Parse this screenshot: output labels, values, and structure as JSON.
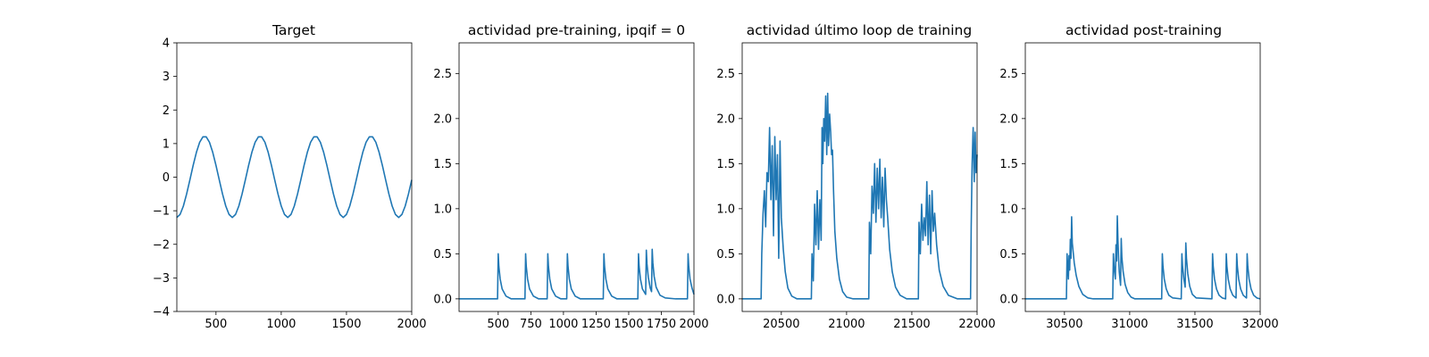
{
  "colors": {
    "series": "#1f77b4"
  },
  "chart_data": [
    {
      "type": "line",
      "title": "Target",
      "xlim": [
        200,
        2000
      ],
      "ylim": [
        -4,
        4
      ],
      "xticks": [
        500,
        1000,
        1500,
        2000
      ],
      "yticks": [
        -4,
        -3,
        -2,
        -1,
        0,
        1,
        2,
        3,
        4
      ],
      "x": [
        200,
        225,
        250,
        275,
        300,
        325,
        350,
        375,
        400,
        425,
        450,
        475,
        500,
        525,
        550,
        575,
        600,
        625,
        650,
        675,
        700,
        725,
        750,
        775,
        800,
        825,
        850,
        875,
        900,
        925,
        950,
        975,
        1000,
        1025,
        1050,
        1075,
        1100,
        1125,
        1150,
        1175,
        1200,
        1225,
        1250,
        1275,
        1300,
        1325,
        1350,
        1375,
        1400,
        1425,
        1450,
        1475,
        1500,
        1525,
        1550,
        1575,
        1600,
        1625,
        1650,
        1675,
        1700,
        1725,
        1750,
        1775,
        1800,
        1825,
        1850,
        1875,
        1900,
        1925,
        1950,
        1975,
        2000
      ],
      "series": [
        {
          "values": [
            -1.2,
            -1.11,
            -0.86,
            -0.5,
            -0.08,
            0.35,
            0.74,
            1.04,
            1.2,
            1.2,
            1.04,
            0.74,
            0.35,
            -0.08,
            -0.5,
            -0.86,
            -1.11,
            -1.2,
            -1.11,
            -0.86,
            -0.5,
            -0.08,
            0.35,
            0.74,
            1.04,
            1.2,
            1.2,
            1.04,
            0.74,
            0.35,
            -0.08,
            -0.5,
            -0.86,
            -1.11,
            -1.2,
            -1.11,
            -0.86,
            -0.5,
            -0.08,
            0.35,
            0.74,
            1.04,
            1.2,
            1.2,
            1.04,
            0.74,
            0.35,
            -0.08,
            -0.5,
            -0.86,
            -1.11,
            -1.2,
            -1.11,
            -0.86,
            -0.5,
            -0.08,
            0.35,
            0.74,
            1.04,
            1.2,
            1.2,
            1.04,
            0.74,
            0.35,
            -0.08,
            -0.5,
            -0.86,
            -1.11,
            -1.2,
            -1.11,
            -0.86,
            -0.5,
            -0.08
          ]
        }
      ]
    },
    {
      "type": "line",
      "title": "actividad pre-training, ipqif = 0",
      "xlim": [
        200,
        2000
      ],
      "ylim": [
        -0.14,
        2.84
      ],
      "xticks": [
        500,
        750,
        1000,
        1250,
        1500,
        1750,
        2000
      ],
      "yticks": [
        0.0,
        0.5,
        1.0,
        1.5,
        2.0,
        2.5
      ],
      "x": [
        200,
        495,
        500,
        505,
        515,
        530,
        560,
        600,
        705,
        710,
        715,
        725,
        740,
        770,
        810,
        875,
        880,
        885,
        895,
        910,
        940,
        980,
        1025,
        1030,
        1035,
        1045,
        1060,
        1090,
        1130,
        1305,
        1310,
        1315,
        1325,
        1340,
        1370,
        1410,
        1570,
        1575,
        1580,
        1590,
        1605,
        1630,
        1635,
        1640,
        1650,
        1665,
        1675,
        1680,
        1685,
        1695,
        1710,
        1740,
        1780,
        1860,
        1950,
        1955,
        1960,
        1970,
        1985,
        2000
      ],
      "series": [
        {
          "values": [
            0.0,
            0.0,
            0.5,
            0.36,
            0.22,
            0.11,
            0.03,
            0.0,
            0.0,
            0.5,
            0.36,
            0.22,
            0.11,
            0.03,
            0.0,
            0.0,
            0.5,
            0.36,
            0.22,
            0.11,
            0.03,
            0.0,
            0.0,
            0.5,
            0.36,
            0.22,
            0.11,
            0.03,
            0.0,
            0.0,
            0.5,
            0.36,
            0.22,
            0.11,
            0.03,
            0.0,
            0.0,
            0.5,
            0.36,
            0.22,
            0.11,
            0.05,
            0.54,
            0.39,
            0.24,
            0.12,
            0.08,
            0.55,
            0.4,
            0.25,
            0.13,
            0.04,
            0.01,
            0.0,
            0.0,
            0.5,
            0.36,
            0.22,
            0.12,
            0.05
          ]
        }
      ]
    },
    {
      "type": "line",
      "title": "actividad último loop de training",
      "xlim": [
        20200,
        22000
      ],
      "ylim": [
        -0.14,
        2.84
      ],
      "xticks": [
        20500,
        21000,
        21500,
        22000
      ],
      "yticks": [
        0.0,
        0.5,
        1.0,
        1.5,
        2.0,
        2.5
      ],
      "x": [
        20200,
        20345,
        20350,
        20360,
        20370,
        20380,
        20390,
        20400,
        20410,
        20420,
        20430,
        20440,
        20450,
        20460,
        20470,
        20480,
        20490,
        20500,
        20515,
        20530,
        20550,
        20580,
        20620,
        20700,
        20730,
        20735,
        20745,
        20755,
        20765,
        20775,
        20785,
        20795,
        20805,
        20812,
        20818,
        20825,
        20832,
        20840,
        20848,
        20855,
        20862,
        20870,
        20878,
        20885,
        20892,
        20900,
        20910,
        20925,
        20945,
        20970,
        21000,
        21050,
        21170,
        21175,
        21185,
        21195,
        21205,
        21215,
        21225,
        21235,
        21245,
        21255,
        21265,
        21275,
        21285,
        21295,
        21305,
        21315,
        21330,
        21350,
        21375,
        21410,
        21460,
        21550,
        21555,
        21565,
        21575,
        21585,
        21595,
        21605,
        21615,
        21625,
        21635,
        21645,
        21655,
        21665,
        21675,
        21690,
        21710,
        21740,
        21780,
        21850,
        21950,
        21955,
        21962,
        21970,
        21978,
        21985,
        21992,
        22000
      ],
      "series": [
        {
          "values": [
            0.0,
            0.0,
            0.5,
            0.95,
            1.2,
            0.8,
            1.4,
            1.3,
            1.9,
            1.1,
            1.7,
            0.7,
            1.8,
            1.1,
            1.6,
            0.45,
            1.75,
            0.9,
            0.55,
            0.3,
            0.12,
            0.03,
            0.0,
            0.0,
            0.0,
            0.5,
            0.2,
            1.05,
            0.6,
            1.2,
            0.55,
            1.1,
            0.65,
            1.9,
            1.5,
            2.0,
            1.75,
            2.25,
            1.6,
            2.28,
            1.7,
            2.05,
            1.85,
            1.6,
            1.65,
            1.2,
            0.75,
            0.45,
            0.22,
            0.08,
            0.02,
            0.0,
            0.0,
            0.85,
            0.5,
            1.25,
            0.95,
            1.5,
            0.85,
            1.45,
            1.0,
            1.55,
            0.9,
            1.35,
            0.8,
            1.45,
            1.1,
            0.9,
            0.55,
            0.3,
            0.13,
            0.04,
            0.0,
            0.0,
            0.85,
            0.5,
            1.05,
            0.65,
            0.9,
            0.7,
            1.3,
            0.6,
            1.15,
            0.5,
            1.2,
            0.75,
            0.95,
            0.6,
            0.32,
            0.14,
            0.04,
            0.0,
            0.0,
            0.8,
            1.5,
            1.9,
            1.3,
            1.85,
            1.4,
            1.6
          ]
        }
      ]
    },
    {
      "type": "line",
      "title": "actividad post-training",
      "xlim": [
        30200,
        32000
      ],
      "ylim": [
        -0.14,
        2.84
      ],
      "xticks": [
        30500,
        31000,
        31500,
        32000
      ],
      "yticks": [
        0.0,
        0.5,
        1.0,
        1.5,
        2.0,
        2.5
      ],
      "x": [
        30200,
        30515,
        30520,
        30525,
        30530,
        30535,
        30540,
        30545,
        30550,
        30555,
        30560,
        30575,
        30590,
        30610,
        30640,
        30680,
        30720,
        30870,
        30875,
        30880,
        30890,
        30895,
        30900,
        30905,
        30910,
        30915,
        30920,
        30930,
        30935,
        30940,
        30950,
        30965,
        30985,
        31010,
        31040,
        31245,
        31250,
        31255,
        31265,
        31280,
        31300,
        31330,
        31395,
        31400,
        31405,
        31415,
        31425,
        31430,
        31435,
        31445,
        31460,
        31480,
        31510,
        31630,
        31635,
        31640,
        31650,
        31665,
        31685,
        31710,
        31735,
        31740,
        31745,
        31755,
        31770,
        31790,
        31815,
        31820,
        31825,
        31835,
        31850,
        31870,
        31895,
        31900,
        31905,
        31915,
        31930,
        31950,
        31975,
        32000
      ],
      "series": [
        {
          "values": [
            0.0,
            0.0,
            0.5,
            0.36,
            0.22,
            0.48,
            0.32,
            0.66,
            0.45,
            0.91,
            0.62,
            0.4,
            0.26,
            0.14,
            0.05,
            0.01,
            0.0,
            0.0,
            0.5,
            0.36,
            0.22,
            0.6,
            0.42,
            0.92,
            0.65,
            0.44,
            0.3,
            0.15,
            0.67,
            0.46,
            0.3,
            0.16,
            0.07,
            0.02,
            0.0,
            0.0,
            0.5,
            0.36,
            0.22,
            0.11,
            0.04,
            0.01,
            0.0,
            0.5,
            0.36,
            0.22,
            0.13,
            0.62,
            0.45,
            0.28,
            0.14,
            0.05,
            0.01,
            0.0,
            0.5,
            0.36,
            0.22,
            0.11,
            0.04,
            0.01,
            0.0,
            0.5,
            0.36,
            0.22,
            0.11,
            0.04,
            0.01,
            0.5,
            0.36,
            0.22,
            0.11,
            0.04,
            0.01,
            0.5,
            0.36,
            0.22,
            0.11,
            0.04,
            0.01,
            0.0
          ]
        }
      ]
    }
  ]
}
